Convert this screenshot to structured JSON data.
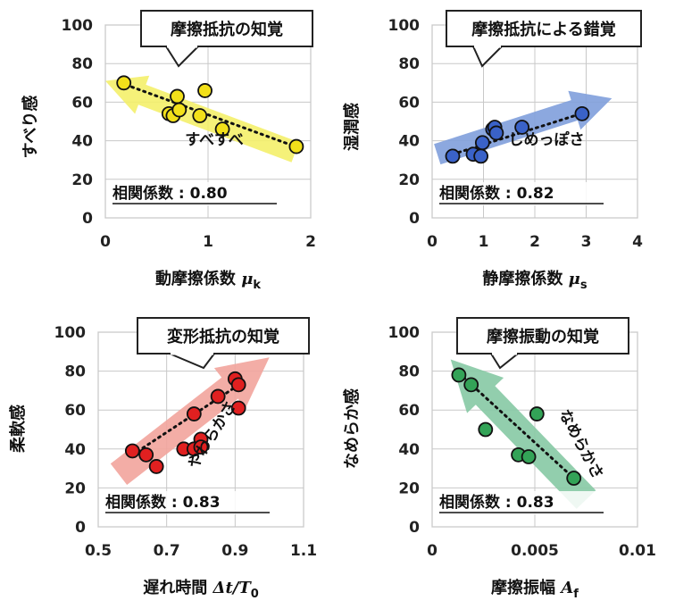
{
  "chart_data": [
    {
      "type": "scatter",
      "title": "摩擦抵抗の知覚",
      "ylabel": "すべり感",
      "xlabel_main": "動摩擦係数",
      "xlabel_symbol": "μ",
      "xlabel_sub": "k",
      "xlim": [
        0,
        2
      ],
      "ylim": [
        0,
        100
      ],
      "xticks": [
        "0",
        "1",
        "2"
      ],
      "yticks": [
        "0",
        "20",
        "40",
        "60",
        "80",
        "100"
      ],
      "grid": true,
      "arrow_label": "すべすべ",
      "arrow_color": "#f4f06a",
      "point_color": "#f2e01a",
      "correlation_label": "相関係数",
      "correlation_value": "0.80",
      "trend": {
        "x": [
          0.2,
          1.85
        ],
        "y": [
          69,
          37
        ]
      },
      "arrow": {
        "from": [
          1.85,
          34
        ],
        "to": [
          0.0,
          71
        ]
      },
      "points": [
        {
          "x": 0.18,
          "y": 70
        },
        {
          "x": 0.62,
          "y": 54
        },
        {
          "x": 0.66,
          "y": 53
        },
        {
          "x": 0.7,
          "y": 63
        },
        {
          "x": 0.72,
          "y": 56
        },
        {
          "x": 0.92,
          "y": 53
        },
        {
          "x": 0.97,
          "y": 66
        },
        {
          "x": 1.14,
          "y": 46
        },
        {
          "x": 1.86,
          "y": 37
        }
      ]
    },
    {
      "type": "scatter",
      "title": "摩擦抵抗による錯覚",
      "ylabel": "湿潤感",
      "xlabel_main": "静摩擦係数",
      "xlabel_symbol": "μ",
      "xlabel_sub": "s",
      "xlim": [
        0,
        4
      ],
      "ylim": [
        0,
        100
      ],
      "xticks": [
        "0",
        "1",
        "2",
        "3",
        "4"
      ],
      "yticks": [
        "0",
        "20",
        "40",
        "60",
        "80",
        "100"
      ],
      "grid": true,
      "arrow_label": "しめっぽさ",
      "arrow_color": "#7f9fdc",
      "point_color": "#3a62c8",
      "correlation_label": "相関係数",
      "correlation_value": "0.82",
      "trend": {
        "x": [
          0.4,
          2.9
        ],
        "y": [
          33,
          54
        ]
      },
      "arrow": {
        "from": [
          0.1,
          33
        ],
        "to": [
          3.5,
          62
        ]
      },
      "points": [
        {
          "x": 0.4,
          "y": 32
        },
        {
          "x": 0.8,
          "y": 33
        },
        {
          "x": 0.95,
          "y": 32
        },
        {
          "x": 0.98,
          "y": 39
        },
        {
          "x": 1.18,
          "y": 46
        },
        {
          "x": 1.22,
          "y": 47
        },
        {
          "x": 1.25,
          "y": 44
        },
        {
          "x": 1.75,
          "y": 47
        },
        {
          "x": 2.92,
          "y": 54
        }
      ]
    },
    {
      "type": "scatter",
      "title": "変形抵抗の知覚",
      "ylabel": "柔軟感",
      "xlabel_main": "遅れ時間",
      "xlabel_symbol": "Δt/T",
      "xlabel_sub": "0",
      "xlim": [
        0.5,
        1.1
      ],
      "ylim": [
        0,
        100
      ],
      "xticks": [
        "0.5",
        "0.7",
        "0.9",
        "1.1"
      ],
      "yticks": [
        "0",
        "20",
        "40",
        "60",
        "80",
        "100"
      ],
      "grid": true,
      "arrow_label": "やわらかさ",
      "arrow_color": "#f2a49c",
      "point_color": "#e02020",
      "correlation_label": "相関係数",
      "correlation_value": "0.83",
      "trend": {
        "x": [
          0.6,
          0.92
        ],
        "y": [
          37,
          74
        ]
      },
      "arrow": {
        "from": [
          0.56,
          27
        ],
        "to": [
          1.0,
          87
        ]
      },
      "points": [
        {
          "x": 0.6,
          "y": 39
        },
        {
          "x": 0.64,
          "y": 37
        },
        {
          "x": 0.67,
          "y": 31
        },
        {
          "x": 0.75,
          "y": 40
        },
        {
          "x": 0.78,
          "y": 40
        },
        {
          "x": 0.78,
          "y": 58
        },
        {
          "x": 0.8,
          "y": 45
        },
        {
          "x": 0.8,
          "y": 41
        },
        {
          "x": 0.85,
          "y": 67
        },
        {
          "x": 0.9,
          "y": 76
        },
        {
          "x": 0.91,
          "y": 73
        },
        {
          "x": 0.91,
          "y": 61
        }
      ]
    },
    {
      "type": "scatter",
      "title": "摩擦振動の知覚",
      "ylabel": "なめらか感",
      "xlabel_main": "摩擦振幅",
      "xlabel_symbol": "A",
      "xlabel_sub": "f",
      "xlim": [
        0,
        0.01
      ],
      "ylim": [
        0,
        100
      ],
      "xticks": [
        "0",
        "0.005",
        "0.01"
      ],
      "yticks": [
        "0",
        "20",
        "40",
        "60",
        "80",
        "100"
      ],
      "grid": true,
      "arrow_label": "なめらかさ",
      "arrow_color": "#86c9a4",
      "point_color": "#33a357",
      "correlation_label": "相関係数",
      "correlation_value": "0.83",
      "trend": {
        "x": [
          0.0013,
          0.007
        ],
        "y": [
          79,
          24
        ]
      },
      "arrow": {
        "from": [
          0.0075,
          14
        ],
        "to": [
          0.0009,
          86
        ]
      },
      "points": [
        {
          "x": 0.0013,
          "y": 78
        },
        {
          "x": 0.0019,
          "y": 73
        },
        {
          "x": 0.0026,
          "y": 50
        },
        {
          "x": 0.0042,
          "y": 37
        },
        {
          "x": 0.0047,
          "y": 36
        },
        {
          "x": 0.0051,
          "y": 58
        },
        {
          "x": 0.0069,
          "y": 25
        }
      ]
    }
  ]
}
